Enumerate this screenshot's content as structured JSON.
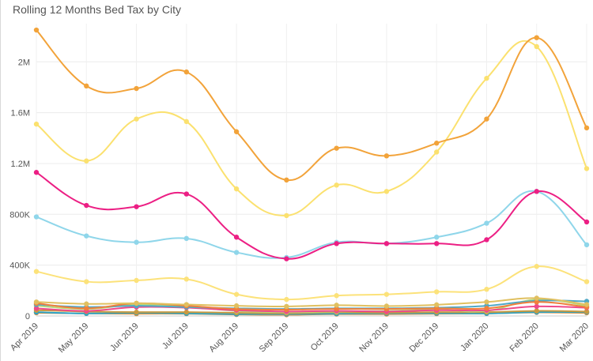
{
  "chart_data": {
    "type": "line",
    "title": "Rolling 12 Months Bed Tax by City",
    "xlabel": "",
    "ylabel": "",
    "ylim": [
      0,
      2300000
    ],
    "y_ticks": [
      0,
      400000,
      800000,
      1200000,
      1600000,
      2000000
    ],
    "y_tick_labels": [
      "0",
      "400K",
      "800K",
      "1.2M",
      "1.6M",
      "2M"
    ],
    "grid": true,
    "legend": "none",
    "categories": [
      "Apr 2019",
      "May 2019",
      "Jun 2019",
      "Jul 2019",
      "Aug 2019",
      "Sep 2019",
      "Oct 2019",
      "Nov 2019",
      "Dec 2019",
      "Jan 2020",
      "Feb 2020",
      "Mar 2020"
    ],
    "series": [
      {
        "color": "#f2a33a",
        "values": [
          2250000,
          1810000,
          1790000,
          1920000,
          1450000,
          1070000,
          1320000,
          1260000,
          1360000,
          1550000,
          2190000,
          1480000
        ]
      },
      {
        "color": "#fbe16f",
        "values": [
          1510000,
          1220000,
          1550000,
          1530000,
          1000000,
          790000,
          1030000,
          980000,
          1290000,
          1870000,
          2120000,
          1160000
        ]
      },
      {
        "color": "#ec1f84",
        "values": [
          1130000,
          870000,
          860000,
          960000,
          620000,
          450000,
          570000,
          570000,
          570000,
          600000,
          980000,
          740000
        ]
      },
      {
        "color": "#8fd6ea",
        "values": [
          780000,
          630000,
          580000,
          610000,
          500000,
          460000,
          580000,
          570000,
          620000,
          730000,
          980000,
          560000
        ]
      },
      {
        "color": "#fce27a",
        "values": [
          350000,
          270000,
          280000,
          290000,
          170000,
          130000,
          160000,
          170000,
          190000,
          210000,
          390000,
          270000
        ]
      },
      {
        "color": "#e0c060",
        "values": [
          110000,
          95000,
          100000,
          90000,
          80000,
          75000,
          85000,
          78000,
          88000,
          110000,
          140000,
          90000
        ]
      },
      {
        "color": "#f07f3c",
        "values": [
          100000,
          60000,
          100000,
          80000,
          55000,
          50000,
          55000,
          55000,
          60000,
          60000,
          110000,
          70000
        ]
      },
      {
        "color": "#4ea8c6",
        "values": [
          90000,
          70000,
          80000,
          70000,
          60000,
          55000,
          60000,
          60000,
          65000,
          80000,
          120000,
          115000
        ]
      },
      {
        "color": "#ee4a8a",
        "values": [
          60000,
          40000,
          70000,
          65000,
          45000,
          35000,
          40000,
          35000,
          45000,
          45000,
          75000,
          65000
        ]
      },
      {
        "color": "#b8d97a",
        "values": [
          80000,
          55000,
          90000,
          75000,
          40000,
          30000,
          35000,
          40000,
          50000,
          40000,
          130000,
          80000
        ]
      },
      {
        "color": "#c89a40",
        "values": [
          45000,
          35000,
          30000,
          30000,
          25000,
          22000,
          28000,
          26000,
          30000,
          30000,
          40000,
          35000
        ]
      },
      {
        "color": "#2ba4c8",
        "values": [
          30000,
          20000,
          25000,
          20000,
          15000,
          15000,
          18000,
          20000,
          22000,
          20000,
          30000,
          30000
        ]
      },
      {
        "color": "#e8892a",
        "values": [
          25000,
          20000,
          18000,
          18000,
          12000,
          10000,
          15000,
          15000,
          18000,
          20000,
          28000,
          25000
        ]
      }
    ]
  }
}
